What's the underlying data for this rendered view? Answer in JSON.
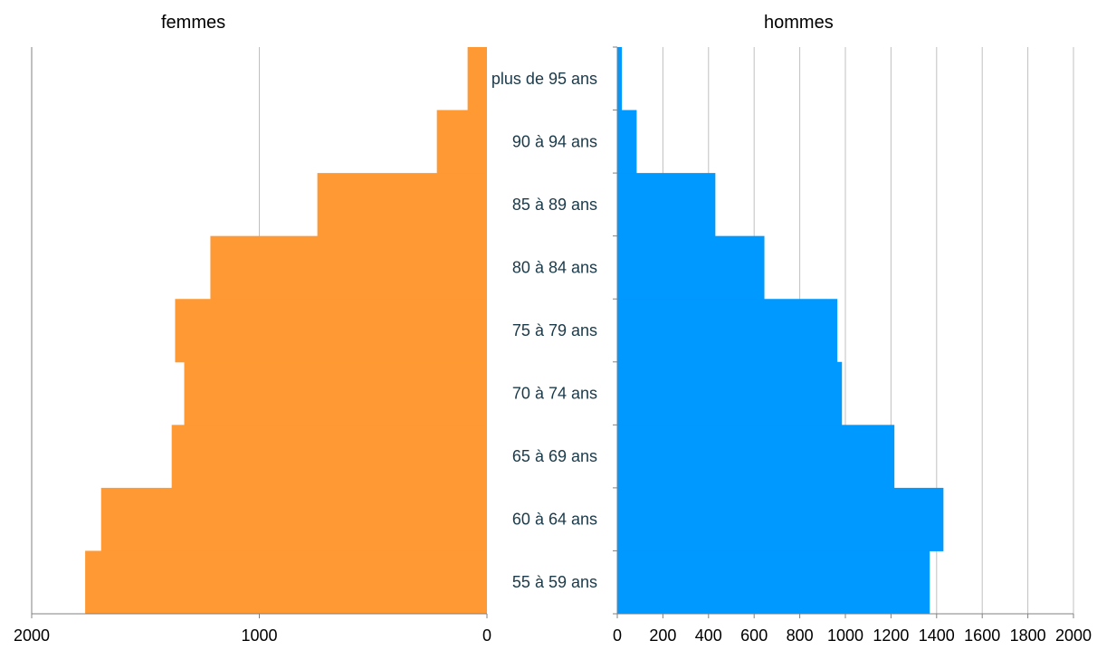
{
  "chart_data": [
    {
      "type": "bar",
      "orientation": "horizontal",
      "direction": "right-to-left",
      "title": "femmes",
      "categories": [
        "55 à 59 ans",
        "60 à 64 ans",
        "65 à 69 ans",
        "70 à 74 ans",
        "75 à 79 ans",
        "80 à 84 ans",
        "85 à 89 ans",
        "90 à 94 ans",
        "plus de 95 ans"
      ],
      "values": [
        1765,
        1695,
        1385,
        1330,
        1370,
        1215,
        745,
        220,
        85
      ],
      "xlim": [
        0,
        2000
      ],
      "xticks": [
        2000,
        1000,
        0
      ],
      "color": "#ff9933",
      "grid": "vertical"
    },
    {
      "type": "bar",
      "orientation": "horizontal",
      "direction": "left-to-right",
      "title": "hommes",
      "categories": [
        "55 à 59 ans",
        "60 à 64 ans",
        "65 à 69 ans",
        "70 à 74 ans",
        "75 à 79 ans",
        "80 à 84 ans",
        "85 à 89 ans",
        "90 à 94 ans",
        "plus de 95 ans"
      ],
      "values": [
        1370,
        1430,
        1215,
        985,
        965,
        645,
        430,
        85,
        20
      ],
      "xlim": [
        0,
        2000
      ],
      "xticks": [
        0,
        200,
        400,
        600,
        800,
        1000,
        1200,
        1400,
        1600,
        1800,
        2000
      ],
      "color": "#0099ff",
      "grid": "vertical"
    }
  ],
  "colors": {
    "axis": "#808080",
    "grid": "#c0c0c0",
    "label": "#1a3a4a"
  }
}
